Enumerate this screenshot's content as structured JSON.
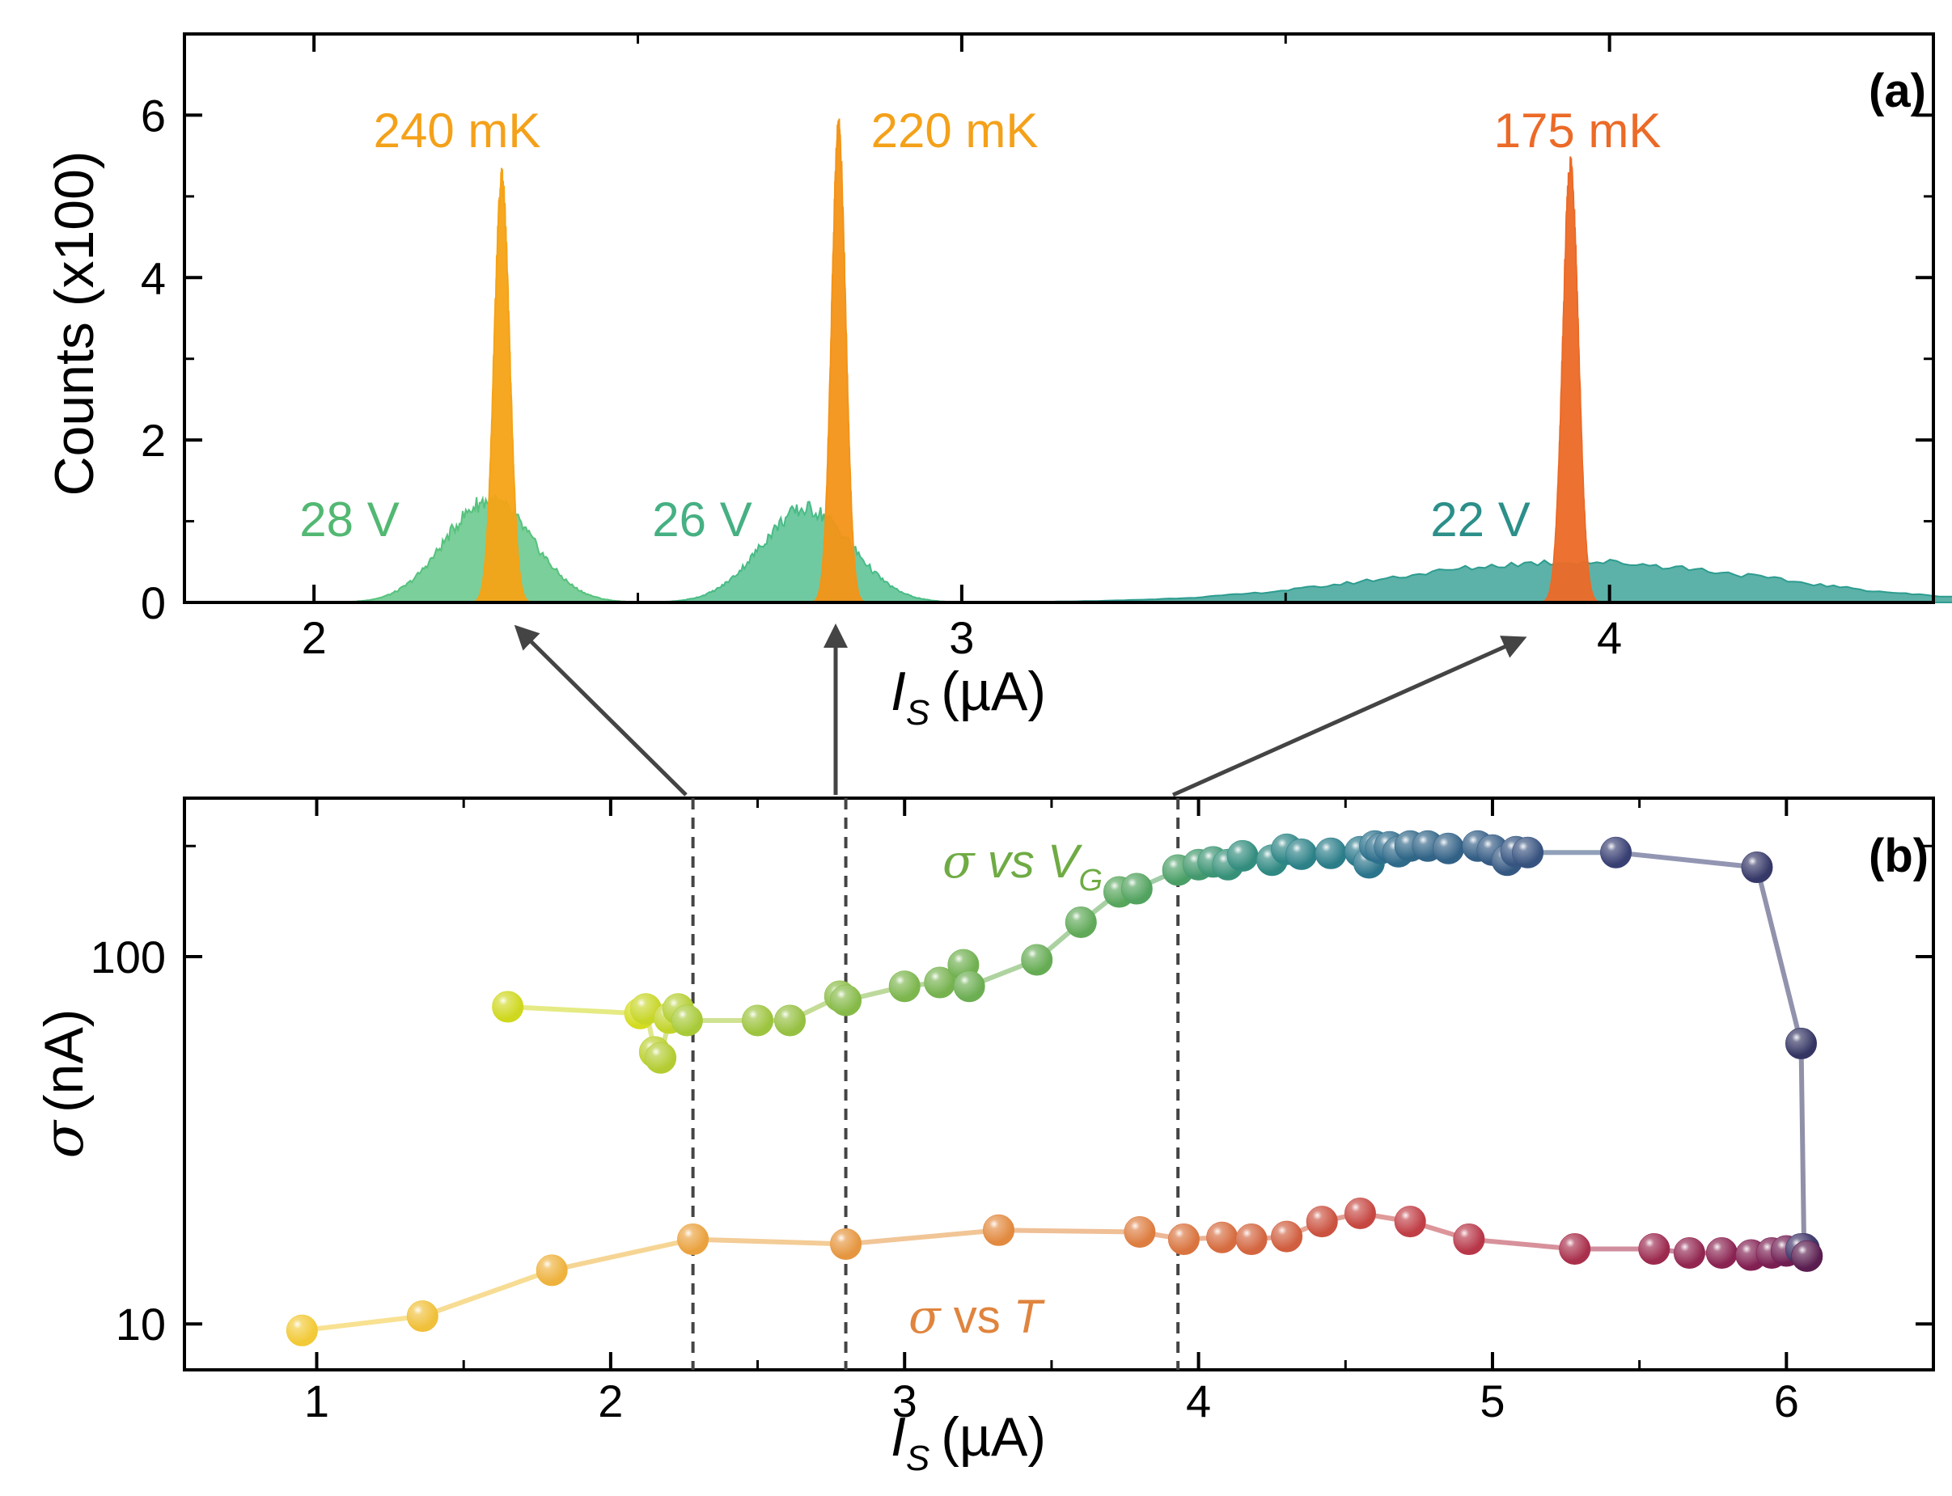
{
  "chart_data": [
    {
      "panel": "(a)",
      "type": "area",
      "title": "",
      "xlabel": "I",
      "xlabel_sub": "S",
      "xlabel_unit": "(µA)",
      "ylabel": "Counts (x100)",
      "xlim": [
        1.8,
        4.5
      ],
      "ylim": [
        0,
        7
      ],
      "xticks": [
        2,
        3,
        4
      ],
      "xtick_labels": [
        "2",
        "3",
        "4"
      ],
      "yticks": [
        0,
        2,
        4,
        6
      ],
      "ytick_labels": [
        "0",
        "2",
        "4",
        "6"
      ],
      "grid": false,
      "series": [
        {
          "name": "240 mK",
          "kind": "temperature",
          "center": 2.29,
          "width": 0.012,
          "peak": 5.2,
          "color": "#f5a316"
        },
        {
          "name": "220 mK",
          "kind": "temperature",
          "center": 2.81,
          "width": 0.011,
          "peak": 5.8,
          "color": "#f39418"
        },
        {
          "name": "175 mK",
          "kind": "temperature",
          "center": 3.94,
          "width": 0.012,
          "peak": 5.4,
          "color": "#ec6a27"
        },
        {
          "name": "28 V",
          "kind": "gate",
          "center": 2.27,
          "width": 0.068,
          "peak": 1.25,
          "color": "#56c27d"
        },
        {
          "name": "26 V",
          "kind": "gate",
          "center": 2.76,
          "width": 0.07,
          "peak": 1.15,
          "color": "#48bb86"
        },
        {
          "name": "22 V",
          "kind": "gate",
          "center": 3.95,
          "width": 0.29,
          "peak": 0.5,
          "color": "#2e9c90"
        }
      ],
      "annotations": [
        {
          "text": "240 mK",
          "color": "#f4a11a"
        },
        {
          "text": "220 mK",
          "color": "#f4a11a"
        },
        {
          "text": "175 mK",
          "color": "#ec6a27"
        },
        {
          "text": "28 V",
          "color": "#52b872"
        },
        {
          "text": "26 V",
          "color": "#46b083"
        },
        {
          "text": "22 V",
          "color": "#2c8f89"
        }
      ]
    },
    {
      "panel": "(b)",
      "type": "scatter",
      "title": "",
      "xlabel": "I",
      "xlabel_sub": "S",
      "xlabel_unit": "(µA)",
      "ylabel": "(nA)",
      "ylabel_symbol": "σ",
      "yscale": "log",
      "xlim": [
        0.55,
        6.5
      ],
      "ylim": [
        7.5,
        270
      ],
      "xticks": [
        1,
        2,
        3,
        4,
        5,
        6
      ],
      "xtick_labels": [
        "1",
        "2",
        "3",
        "4",
        "5",
        "6"
      ],
      "yticks": [
        10,
        100
      ],
      "ytick_labels": [
        "10",
        "100"
      ],
      "grid": false,
      "series": [
        {
          "name": "σ vs VG",
          "label_symbol": "σ",
          "label_mid": " vs ",
          "label_var": "V",
          "label_sub": "G",
          "x": [
            1.65,
            2.1,
            2.12,
            2.15,
            2.17,
            2.2,
            2.23,
            2.26,
            2.5,
            2.61,
            2.78,
            2.8,
            3.0,
            3.12,
            3.2,
            3.22,
            3.45,
            3.6,
            3.73,
            3.79,
            3.93,
            4.0,
            4.05,
            4.1,
            4.15,
            4.25,
            4.3,
            4.35,
            4.45,
            4.55,
            4.58,
            4.6,
            4.62,
            4.65,
            4.68,
            4.72,
            4.78,
            4.85,
            4.95,
            5.0,
            5.05,
            5.08,
            5.12,
            5.42,
            5.9,
            6.05,
            6.06
          ],
          "y": [
            73,
            70,
            72,
            55,
            53,
            68,
            72,
            67,
            67,
            67,
            78,
            76,
            83,
            85,
            95,
            83,
            98,
            124,
            150,
            153,
            172,
            178,
            181,
            178,
            188,
            183,
            196,
            190,
            191,
            193,
            180,
            200,
            197,
            199,
            193,
            200,
            200,
            197,
            200,
            195,
            183,
            193,
            192,
            192,
            175,
            58,
            16
          ],
          "colors": [
            "#cfd81e",
            "#d4dc20",
            "#c8d628",
            "#bcd030",
            "#b4cc32",
            "#c2d42a",
            "#b4cf33",
            "#a8ca38",
            "#9dc43e",
            "#96c042",
            "#8cbd46",
            "#86ba48",
            "#7cb64d",
            "#76b24e",
            "#70b050",
            "#6cae52",
            "#66ac54",
            "#60a958",
            "#58a65c",
            "#52a35f",
            "#4a9f66",
            "#43996d",
            "#3c9574",
            "#379179",
            "#338d7e",
            "#2f8982",
            "#2d8585",
            "#2b8187",
            "#2a7d89",
            "#2a788b",
            "#2b758c",
            "#2c728c",
            "#2d6f8c",
            "#2e6c8b",
            "#2f6a8a",
            "#306788",
            "#316487",
            "#326186",
            "#335e85",
            "#345b84",
            "#355882",
            "#365581",
            "#37527f",
            "#383f72",
            "#363868",
            "#343563",
            "#313263"
          ]
        },
        {
          "name": "σ vs T",
          "label_symbol": "σ",
          "label_mid": " vs ",
          "label_var": "T",
          "label_sub": "",
          "x": [
            0.95,
            1.36,
            1.8,
            2.28,
            2.8,
            3.32,
            3.8,
            3.95,
            4.08,
            4.18,
            4.3,
            4.42,
            4.55,
            4.72,
            4.92,
            5.28,
            5.55,
            5.67,
            5.78,
            5.88,
            5.95,
            6.0,
            6.05,
            6.07
          ],
          "y": [
            9.6,
            10.5,
            14,
            17,
            16.5,
            18,
            17.8,
            17,
            17.2,
            17,
            17.3,
            19,
            20,
            19,
            17,
            16,
            16,
            15.6,
            15.6,
            15.4,
            15.6,
            15.8,
            16,
            15.3
          ],
          "colors": [
            "#f2c936",
            "#f0c03a",
            "#eeb23d",
            "#eaa23f",
            "#e5963f",
            "#e28a40",
            "#dd7d40",
            "#d9743f",
            "#d66c3f",
            "#d3653f",
            "#d05e3f",
            "#cb5240",
            "#c64742",
            "#c03e45",
            "#b73748",
            "#a9304c",
            "#9c2a4f",
            "#922650",
            "#8a2351",
            "#822052",
            "#7a1f52",
            "#701e52",
            "#3f3468",
            "#5a1d50"
          ]
        }
      ],
      "annotations": [
        {
          "text": "σ vs VG",
          "color": "#6fab44"
        },
        {
          "text": "σ vs T",
          "color": "#e0843e"
        }
      ],
      "markers": [
        2.28,
        2.8,
        3.93
      ]
    }
  ],
  "labels": {
    "panel_a": "(a)",
    "panel_b": "(b)"
  }
}
